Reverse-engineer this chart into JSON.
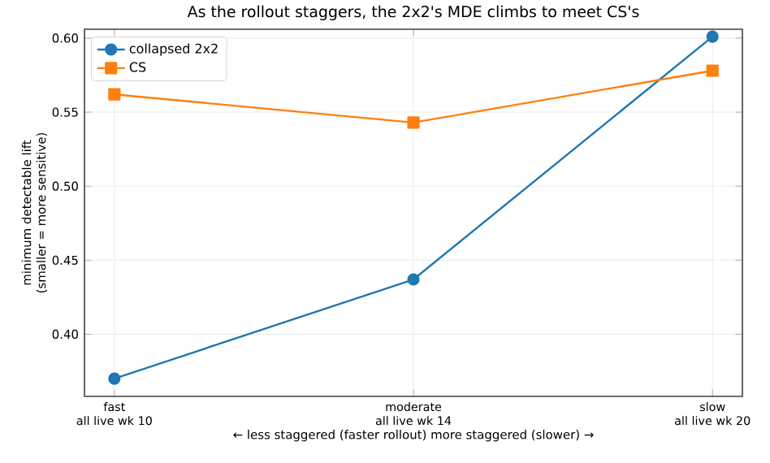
{
  "chart_data": {
    "type": "line",
    "title": "As the rollout staggers, the 2x2's MDE climbs to meet CS's",
    "xlabel": "←  less staggered (faster rollout)        more staggered (slower)  →",
    "ylabel": "minimum detectable lift\n(smaller = more sensitive)",
    "categories": [
      "fast\nall live wk 10",
      "moderate\nall live wk 14",
      "slow\nall live wk 20"
    ],
    "series": [
      {
        "name": "collapsed 2x2",
        "color": "#1f77b4",
        "marker": "circle",
        "values": [
          0.37,
          0.437,
          0.601
        ]
      },
      {
        "name": "CS",
        "color": "#ff7f0e",
        "marker": "square",
        "values": [
          0.562,
          0.543,
          0.578
        ]
      }
    ],
    "ylim": [
      0.358,
      0.606
    ],
    "yticks": [
      {
        "value": 0.4,
        "label": "0.40"
      },
      {
        "value": 0.45,
        "label": "0.45"
      },
      {
        "value": 0.5,
        "label": "0.50"
      },
      {
        "value": 0.55,
        "label": "0.55"
      },
      {
        "value": 0.6,
        "label": "0.60"
      }
    ],
    "grid": true,
    "legend": "top left",
    "line_style": "solid"
  }
}
